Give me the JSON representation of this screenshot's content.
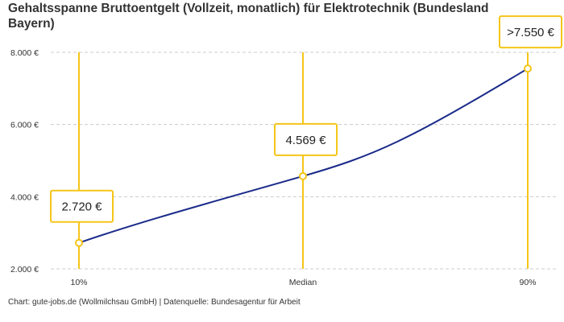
{
  "chart_data": {
    "type": "line",
    "title": "Gehaltsspanne Bruttoentgelt (Vollzeit, monatlich) für Elektrotechnik (Bundesland Bayern)",
    "categories": [
      "10%",
      "Median",
      "90%"
    ],
    "values": [
      2720,
      4569,
      7550
    ],
    "data_labels": [
      "2.720 €",
      "4.569 €",
      ">7.550 €"
    ],
    "ylim": [
      2000,
      8000
    ],
    "yticks": [
      2000,
      4000,
      6000,
      8000
    ],
    "ytick_labels": [
      "2.000 €",
      "4.000 €",
      "6.000 €",
      "8.000 €"
    ],
    "grid": "horizontal dashed",
    "colors": {
      "line": "#1a2a8a",
      "marker": "#f5c518",
      "grid": "#cccccc"
    }
  },
  "source": "Chart: gute-jobs.de (Wollmilchsau GmbH) | Datenquelle: Bundesagentur für Arbeit"
}
